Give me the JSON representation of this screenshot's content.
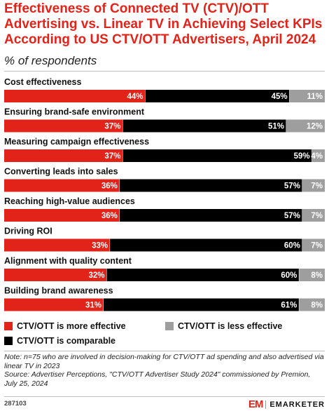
{
  "header": {
    "title": "Effectiveness of Connected TV (CTV)/OTT Advertising vs. Linear TV in Achieving Select KPIs According to US CTV/OTT Advertisers, April 2024",
    "subtitle": "% of respondents"
  },
  "colors": {
    "more_effective": "#e2231a",
    "comparable": "#000000",
    "less_effective": "#9e9e9e"
  },
  "chart_data": {
    "type": "bar",
    "orientation": "horizontal",
    "stacked": true,
    "unit": "%",
    "categories": [
      "Cost effectiveness",
      "Ensuring brand-safe environment",
      "Measuring campaign effectiveness",
      "Converting leads into sales",
      "Reaching high-value audiences",
      "Driving ROI",
      "Alignment with quality content",
      "Building brand awareness"
    ],
    "series": [
      {
        "name": "CTV/OTT is more effective",
        "values": [
          44,
          37,
          37,
          36,
          36,
          33,
          32,
          31
        ]
      },
      {
        "name": "CTV/OTT is comparable",
        "values": [
          45,
          51,
          59,
          57,
          57,
          60,
          60,
          61
        ]
      },
      {
        "name": "CTV/OTT is less effective",
        "values": [
          11,
          12,
          4,
          7,
          7,
          7,
          8,
          8
        ]
      }
    ],
    "legend_position": "bottom"
  },
  "legend": {
    "more_effective": "CTV/OTT is more effective",
    "less_effective": "CTV/OTT is less effective",
    "comparable": "CTV/OTT is comparable"
  },
  "note": {
    "line1": "Note: n=75 who are involved in decision-making for CTV/OTT ad spending and also advertised via linear TV in 2023",
    "line2": "Source: Advertiser Perceptions, \"CTV/OTT Advertiser Study 2024\" commissioned by Premion, July 25, 2024"
  },
  "footer": {
    "chart_id": "287103",
    "logo_mark": "EM",
    "logo_text": "EMARKETER"
  }
}
